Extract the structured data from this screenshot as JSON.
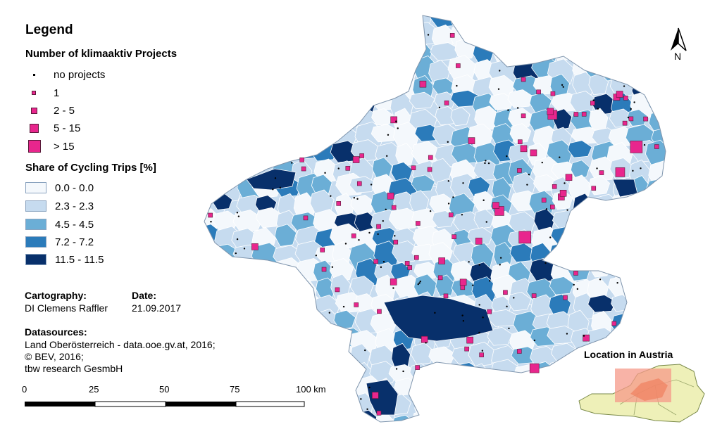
{
  "legend": {
    "title": "Legend",
    "projects": {
      "title": "Number of klimaaktiv Projects",
      "items": [
        "no projects",
        "1",
        "2 - 5",
        "5 - 15",
        "> 15"
      ]
    },
    "cycling": {
      "title": "Share of Cycling Trips [%]",
      "items": [
        {
          "label": "0.0 - 0.0",
          "color": "#f4f8fc"
        },
        {
          "label": "2.3 - 2.3",
          "color": "#c6dbef"
        },
        {
          "label": "4.5 - 4.5",
          "color": "#6baed6"
        },
        {
          "label": "7.2 - 7.2",
          "color": "#2b7bba"
        },
        {
          "label": "11.5 - 11.5",
          "color": "#08306b"
        }
      ]
    }
  },
  "credits": {
    "cartography_label": "Cartography:",
    "cartography_value": "DI Clemens Raffler",
    "date_label": "Date:",
    "date_value": "21.09.2017",
    "datasources_label": "Datasources:",
    "datasources": [
      "Land Oberösterreich - data.ooe.gv.at, 2016;",
      "© BEV, 2016;",
      "tbw research GesmbH"
    ]
  },
  "scalebar": {
    "ticks": [
      "0",
      "25",
      "50",
      "75",
      "100 km"
    ]
  },
  "north_arrow": {
    "label": "N"
  },
  "inset": {
    "title": "Location in Austria"
  },
  "colors": {
    "project": "#e8268d",
    "boundary": "#ffffff",
    "inset_fill": "#eef0b8",
    "inset_highlight": "#f59a8a"
  }
}
